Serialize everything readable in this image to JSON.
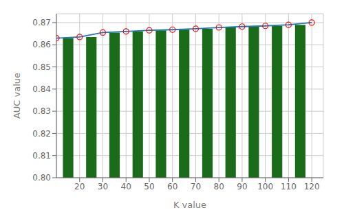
{
  "chart_data": {
    "type": "bar+line",
    "xlabel": "K value",
    "ylabel": "AUC value",
    "xlim": [
      10,
      125
    ],
    "xticks": [
      20,
      30,
      40,
      50,
      60,
      70,
      80,
      90,
      100,
      110,
      120
    ],
    "ylim": [
      0.8,
      0.874
    ],
    "yticks": [
      {
        "value": 0.8,
        "label": "0.80"
      },
      0.81,
      0.82,
      0.83,
      0.84,
      0.85,
      0.86,
      0.87
    ],
    "grid": true,
    "series": [
      {
        "type": "bar",
        "x": [
          15,
          25,
          35,
          45,
          55,
          65,
          75,
          85,
          95,
          105,
          115
        ],
        "values": [
          0.863,
          0.8635,
          0.8655,
          0.866,
          0.8665,
          0.8668,
          0.8672,
          0.8678,
          0.8682,
          0.8685,
          0.869
        ],
        "color": "#1a6b1a"
      },
      {
        "type": "line",
        "x": [
          10,
          20,
          30,
          40,
          50,
          60,
          70,
          80,
          90,
          100,
          110,
          120
        ],
        "values": [
          0.863,
          0.8635,
          0.8655,
          0.866,
          0.8665,
          0.8668,
          0.8672,
          0.8678,
          0.8682,
          0.8685,
          0.869,
          0.87
        ],
        "color": "#1f77b4"
      },
      {
        "type": "line",
        "x": [
          10,
          20,
          30,
          40,
          50,
          60,
          70,
          80,
          90,
          100,
          110,
          120
        ],
        "values": [
          0.863,
          0.8635,
          0.8655,
          0.866,
          0.8665,
          0.8668,
          0.8672,
          0.8678,
          0.8682,
          0.8685,
          0.869,
          0.87
        ],
        "color": "#ff0000",
        "marker": "hollow_circle",
        "line_style": "none"
      }
    ]
  }
}
